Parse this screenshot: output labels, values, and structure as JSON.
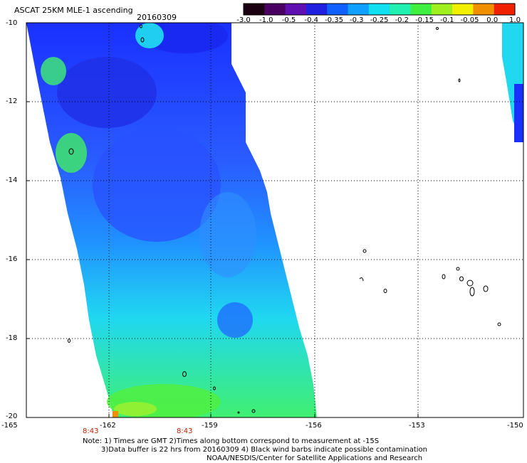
{
  "header": {
    "title": "ASCAT 25KM MLE-1 ascending",
    "date": "20160309"
  },
  "colorbar": {
    "labels": [
      "-3.0",
      "-1.0",
      "-0.5",
      "-0.4",
      "-0.35",
      "-0.3",
      "-0.25",
      "-0.2",
      "-0.15",
      "-0.1",
      "-0.05",
      "0.0",
      "1.0"
    ],
    "colors": [
      "#1a0010",
      "#4a0060",
      "#6010b0",
      "#2020e0",
      "#1060ff",
      "#10a0ff",
      "#10e0f0",
      "#20f0b0",
      "#40f040",
      "#a0f020",
      "#f0f000",
      "#f09000",
      "#f02000"
    ]
  },
  "axes": {
    "y_labels": [
      "-10",
      "-12",
      "-14",
      "-16",
      "-18",
      "-20"
    ],
    "x_labels": [
      "-165",
      "-162",
      "-159",
      "-156",
      "-153",
      "-150"
    ]
  },
  "times": [
    "8:43",
    "8:43"
  ],
  "notes": [
    "Note: 1) Times are GMT 2)Times along bottom correspond to measurement at -15S",
    "3)Data buffer is 22 hrs from 20160309 4) Black wind barbs indicate possible contamination",
    "NOAA/NESDIS/Center for Satellite Applications and Research"
  ]
}
